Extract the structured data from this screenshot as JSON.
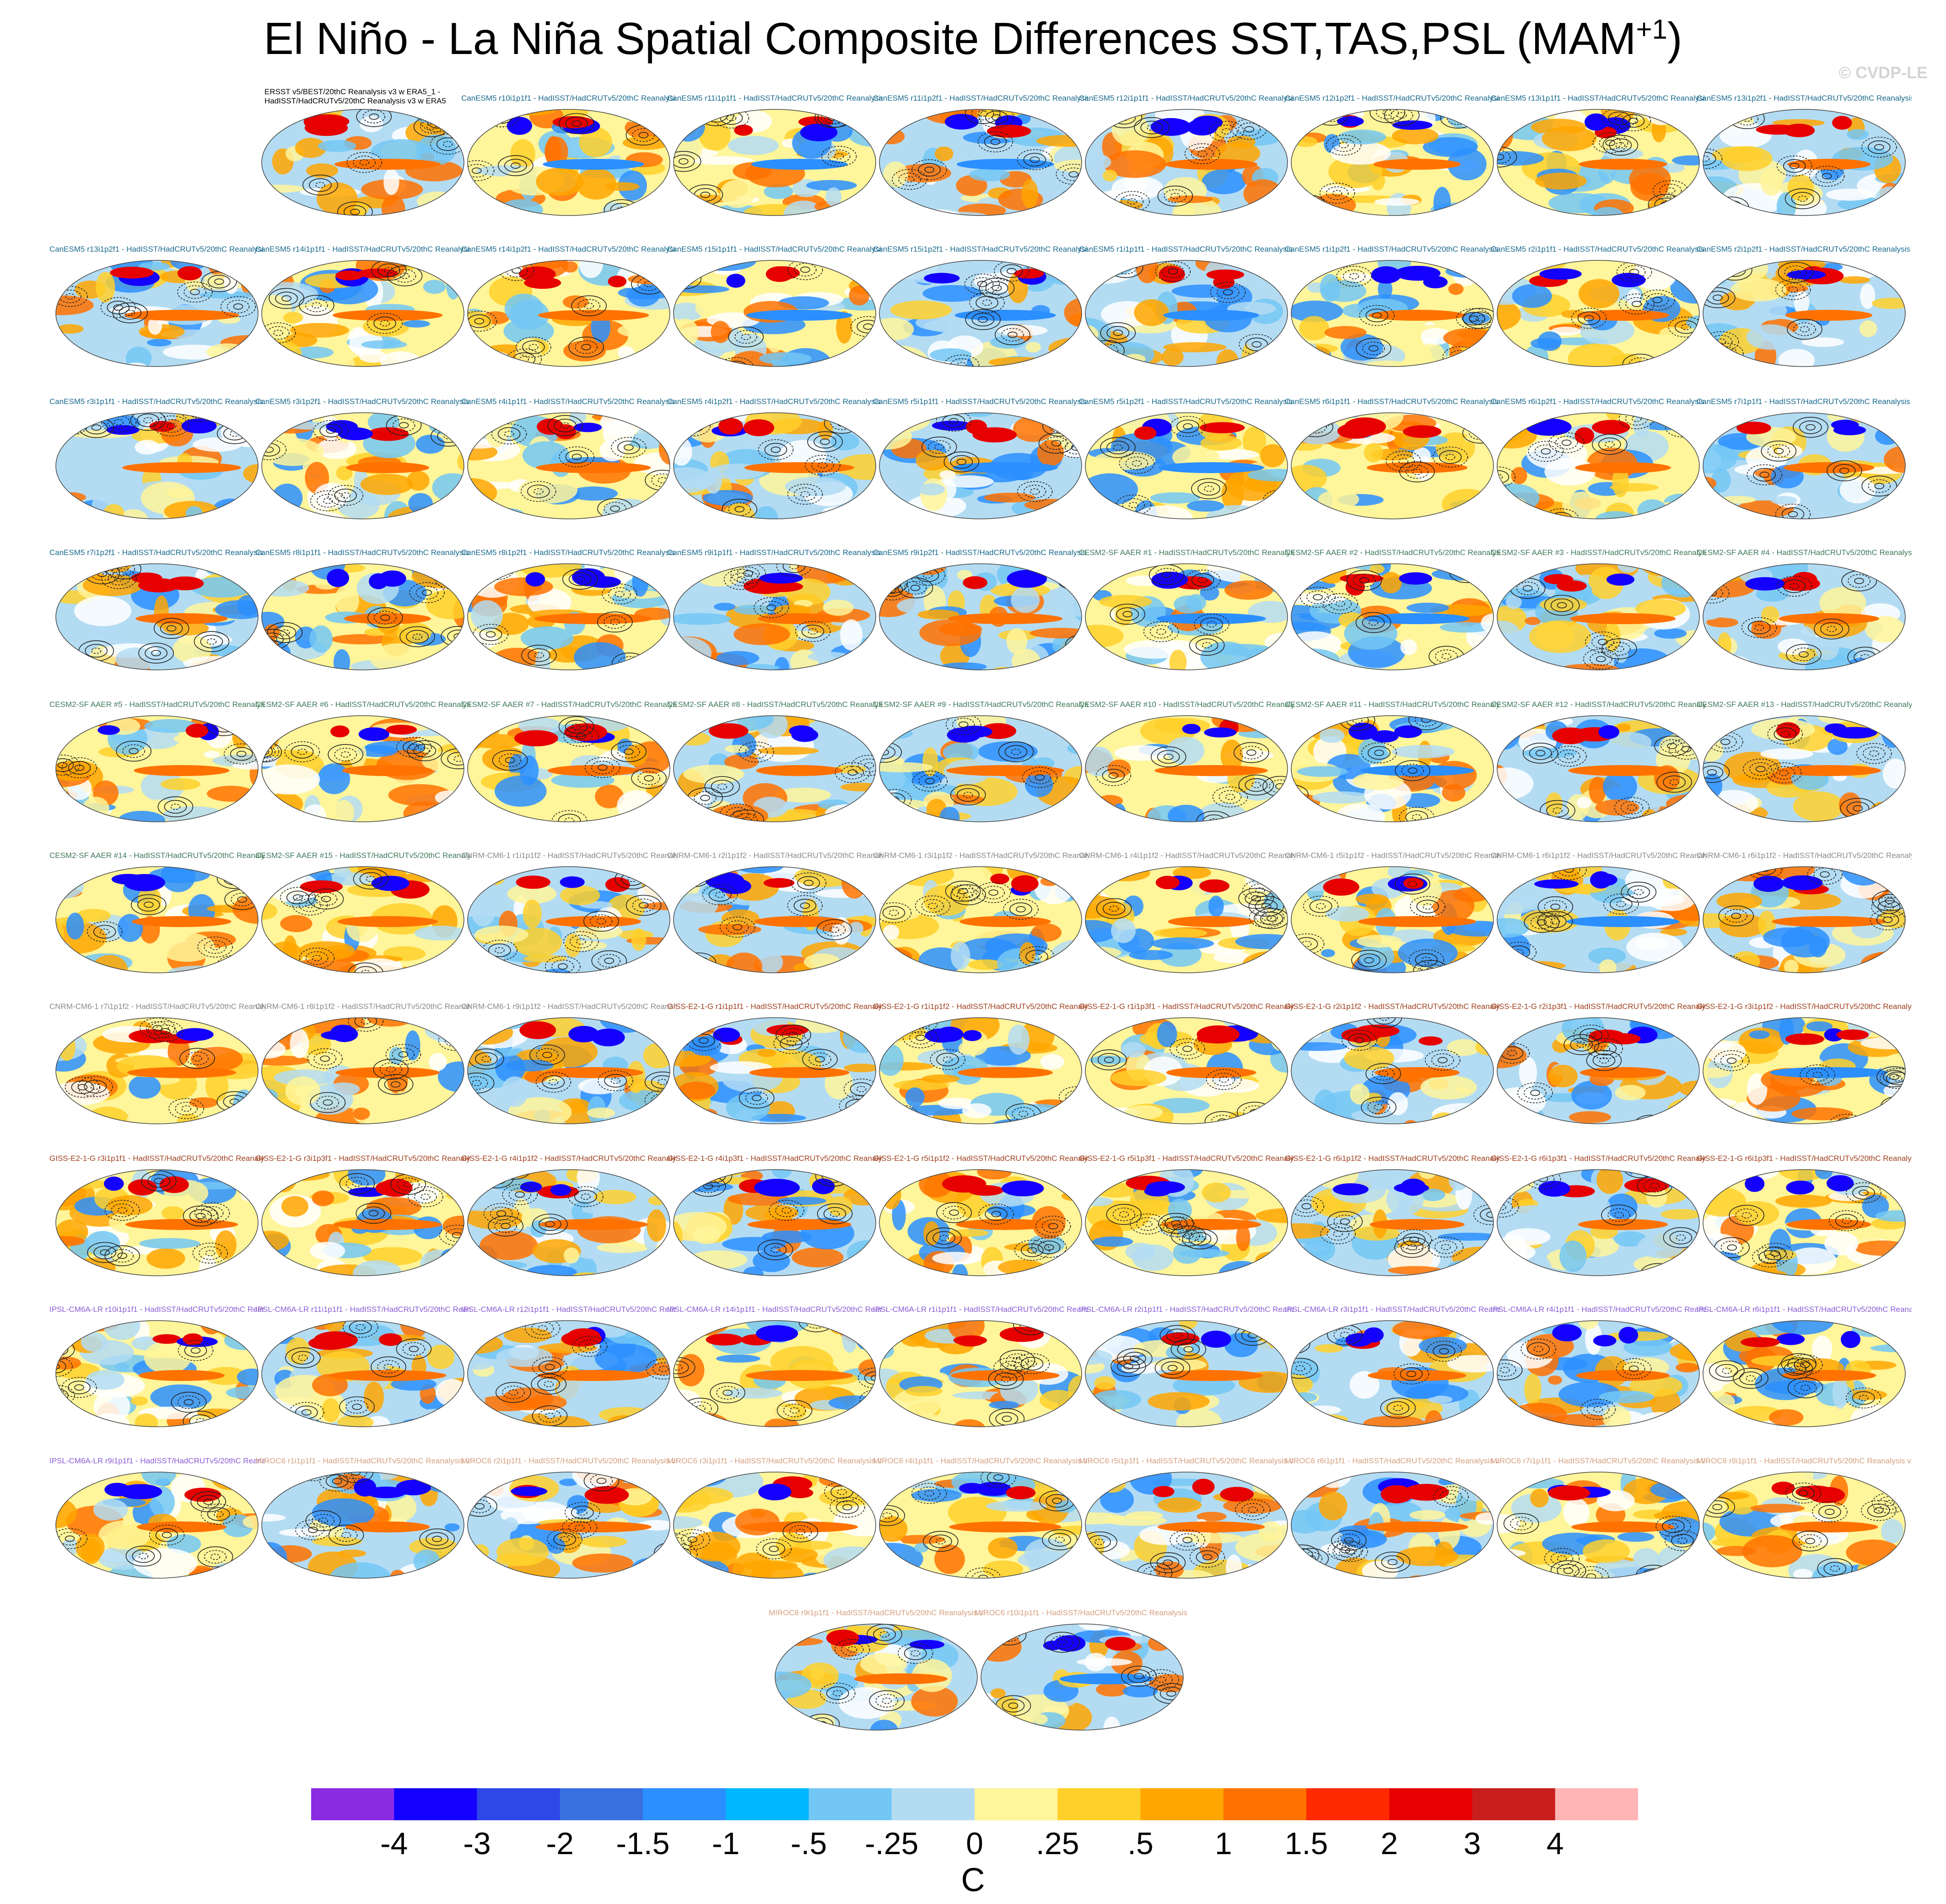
{
  "title": "El Niño - La Niña Spatial Composite Differences SST,TAS,PSL (MAM",
  "title_sup": "+1",
  "title_end": ")",
  "credit": "© CVDP-LE",
  "obs_header_line1": "ERSST v5/BEST/20thC Reanalysis v3 w ERA5_1 -",
  "obs_header_line2": "HadISST/HadCRUTv5/20thC Reanalysis v3 w ERA5",
  "chart_data": {
    "type": "heatmap",
    "description_units": "C",
    "colorbar": {
      "colors": [
        "#8a2be2",
        "#1400ff",
        "#2e48e8",
        "#3a6fe0",
        "#2b8fff",
        "#00b7ff",
        "#73c7f5",
        "#b3dcf3",
        "#fff59a",
        "#ffd02a",
        "#ffa600",
        "#ff7200",
        "#ff2a00",
        "#e60000",
        "#c81e1e",
        "#ffb5b5"
      ],
      "tick_labels": [
        "-4",
        "-3",
        "-2",
        "-1.5",
        "-1",
        "-.5",
        "-.25",
        "0",
        ".25",
        ".5",
        "1",
        "1.5",
        "2",
        "3",
        "4"
      ]
    },
    "panels": [
      {
        "label": "ERSST v5/BEST/20thC Reanalysis v3 w ERA5_1 - HadISST/HadCRUTv5/20thC Reanalysis v3 w ERA5",
        "color": "#000000"
      },
      {
        "label": "CanESM5 r10i1p1f1 - HadISST/HadCRUTv5/20thC Reanalysis v3 w ERA5",
        "color": "#1a6a8e"
      },
      {
        "label": "CanESM5 r11i1p1f1 - HadISST/HadCRUTv5/20thC Reanalysis v3 w ERA5",
        "color": "#1a6a8e"
      },
      {
        "label": "CanESM5 r11i1p2f1 - HadISST/HadCRUTv5/20thC Reanalysis v3 w ERA5",
        "color": "#1a6a8e"
      },
      {
        "label": "CanESM5 r12i1p1f1 - HadISST/HadCRUTv5/20thC Reanalysis v3 w ERA5",
        "color": "#1a6a8e"
      },
      {
        "label": "CanESM5 r12i1p2f1 - HadISST/HadCRUTv5/20thC Reanalysis v3 w ERA5",
        "color": "#1a6a8e"
      },
      {
        "label": "CanESM5 r13i1p1f1 - HadISST/HadCRUTv5/20thC Reanalysis v3 w ERA5",
        "color": "#1a6a8e"
      },
      {
        "label": "CanESM5 r13i1p2f1 - HadISST/HadCRUTv5/20thC Reanalysis v3 w ERA5",
        "color": "#1a6a8e"
      },
      {
        "label": "CanESM5 r13i1p2f1 - HadISST/HadCRUTv5/20thC Reanalysis v3 w ERA5",
        "color": "#1a6a8e"
      },
      {
        "label": "CanESM5 r14i1p1f1 - HadISST/HadCRUTv5/20thC Reanalysis v3 w ERA5",
        "color": "#1a6a8e"
      },
      {
        "label": "CanESM5 r14i1p2f1 - HadISST/HadCRUTv5/20thC Reanalysis v3 w ERA5",
        "color": "#1a6a8e"
      },
      {
        "label": "CanESM5 r15i1p1f1 - HadISST/HadCRUTv5/20thC Reanalysis v3 w ERA5",
        "color": "#1a6a8e"
      },
      {
        "label": "CanESM5 r15i1p2f1 - HadISST/HadCRUTv5/20thC Reanalysis v3 w ERA5",
        "color": "#1a6a8e"
      },
      {
        "label": "CanESM5 r1i1p1f1 - HadISST/HadCRUTv5/20thC Reanalysis v3 w ERA5",
        "color": "#1a6a8e"
      },
      {
        "label": "CanESM5 r1i1p2f1 - HadISST/HadCRUTv5/20thC Reanalysis v3 w ERA5",
        "color": "#1a6a8e"
      },
      {
        "label": "CanESM5 r2i1p1f1 - HadISST/HadCRUTv5/20thC Reanalysis v3 w ERA5",
        "color": "#1a6a8e"
      },
      {
        "label": "CanESM5 r2i1p2f1 - HadISST/HadCRUTv5/20thC Reanalysis v3 w ERA5",
        "color": "#1a6a8e"
      },
      {
        "label": "CanESM5 r3i1p1f1 - HadISST/HadCRUTv5/20thC Reanalysis v3 w ERA5",
        "color": "#1a6a8e"
      },
      {
        "label": "CanESM5 r3i1p2f1 - HadISST/HadCRUTv5/20thC Reanalysis v3 w ERA5",
        "color": "#1a6a8e"
      },
      {
        "label": "CanESM5 r4i1p1f1 - HadISST/HadCRUTv5/20thC Reanalysis v3 w ERA5",
        "color": "#1a6a8e"
      },
      {
        "label": "CanESM5 r4i1p2f1 - HadISST/HadCRUTv5/20thC Reanalysis v3 w ERA5",
        "color": "#1a6a8e"
      },
      {
        "label": "CanESM5 r5i1p1f1 - HadISST/HadCRUTv5/20thC Reanalysis v3 w ERA5",
        "color": "#1a6a8e"
      },
      {
        "label": "CanESM5 r5i1p2f1 - HadISST/HadCRUTv5/20thC Reanalysis v3 w ERA5",
        "color": "#1a6a8e"
      },
      {
        "label": "CanESM5 r6i1p1f1 - HadISST/HadCRUTv5/20thC Reanalysis v3 w ERA5",
        "color": "#1a6a8e"
      },
      {
        "label": "CanESM5 r6i1p2f1 - HadISST/HadCRUTv5/20thC Reanalysis v3 w ERA5",
        "color": "#1a6a8e"
      },
      {
        "label": "CanESM5 r7i1p1f1 - HadISST/HadCRUTv5/20thC Reanalysis v3 w ERA5",
        "color": "#1a6a8e"
      },
      {
        "label": "CanESM5 r7i1p2f1 - HadISST/HadCRUTv5/20thC Reanalysis v3 w ERA5",
        "color": "#1a6a8e"
      },
      {
        "label": "CanESM5 r8i1p1f1 - HadISST/HadCRUTv5/20thC Reanalysis v3 w ERA5",
        "color": "#1a6a8e"
      },
      {
        "label": "CanESM5 r8i1p2f1 - HadISST/HadCRUTv5/20thC Reanalysis v3 w ERA5",
        "color": "#1a6a8e"
      },
      {
        "label": "CanESM5 r9i1p1f1 - HadISST/HadCRUTv5/20thC Reanalysis v3 w ERA5",
        "color": "#1a6a8e"
      },
      {
        "label": "CanESM5 r9i1p2f1 - HadISST/HadCRUTv5/20thC Reanalysis v3 w ERA5",
        "color": "#1a6a8e"
      },
      {
        "label": "CESM2-SF AAER #1 - HadISST/HadCRUTv5/20thC Reanalysis v3 w ERA5",
        "color": "#3f7a5a"
      },
      {
        "label": "CESM2-SF AAER #2 - HadISST/HadCRUTv5/20thC Reanalysis v3 w ERA5",
        "color": "#3f7a5a"
      },
      {
        "label": "CESM2-SF AAER #3 - HadISST/HadCRUTv5/20thC Reanalysis v3 w ERA5",
        "color": "#3f7a5a"
      },
      {
        "label": "CESM2-SF AAER #4 - HadISST/HadCRUTv5/20thC Reanalysis v3 w ERA5",
        "color": "#3f7a5a"
      },
      {
        "label": "CESM2-SF AAER #5 - HadISST/HadCRUTv5/20thC Reanalysis v3 w ERA5",
        "color": "#3f7a5a"
      },
      {
        "label": "CESM2-SF AAER #6 - HadISST/HadCRUTv5/20thC Reanalysis v3 w ERA5",
        "color": "#3f7a5a"
      },
      {
        "label": "CESM2-SF AAER #7 - HadISST/HadCRUTv5/20thC Reanalysis v3 w ERA5",
        "color": "#3f7a5a"
      },
      {
        "label": "CESM2-SF AAER #8 - HadISST/HadCRUTv5/20thC Reanalysis v3 w ERA5",
        "color": "#3f7a5a"
      },
      {
        "label": "CESM2-SF AAER #9 - HadISST/HadCRUTv5/20thC Reanalysis v3 w ERA5",
        "color": "#3f7a5a"
      },
      {
        "label": "CESM2-SF AAER #10 - HadISST/HadCRUTv5/20thC Reanalysis v3 w ERA5",
        "color": "#3f7a5a"
      },
      {
        "label": "CESM2-SF AAER #11 - HadISST/HadCRUTv5/20thC Reanalysis v3 w ERA5",
        "color": "#3f7a5a"
      },
      {
        "label": "CESM2-SF AAER #12 - HadISST/HadCRUTv5/20thC Reanalysis v3 w ERA5",
        "color": "#3f7a5a"
      },
      {
        "label": "CESM2-SF AAER #13 - HadISST/HadCRUTv5/20thC Reanalysis v3 w ERA5",
        "color": "#3f7a5a"
      },
      {
        "label": "CESM2-SF AAER #14 - HadISST/HadCRUTv5/20thC Reanalysis v3 w ERA5",
        "color": "#3f7a5a"
      },
      {
        "label": "CESM2-SF AAER #15 - HadISST/HadCRUTv5/20thC Reanalysis v3 w ERA5",
        "color": "#3f7a5a"
      },
      {
        "label": "CNRM-CM6-1 r1i1p1f2 - HadISST/HadCRUTv5/20thC Reanalysis v3 w ERA5",
        "color": "#8a8a8a"
      },
      {
        "label": "CNRM-CM6-1 r2i1p1f2 - HadISST/HadCRUTv5/20thC Reanalysis v3 w ERA5",
        "color": "#8a8a8a"
      },
      {
        "label": "CNRM-CM6-1 r3i1p1f2 - HadISST/HadCRUTv5/20thC Reanalysis v3 w ERA5",
        "color": "#8a8a8a"
      },
      {
        "label": "CNRM-CM6-1 r4i1p1f2 - HadISST/HadCRUTv5/20thC Reanalysis v3 w ERA5",
        "color": "#8a8a8a"
      },
      {
        "label": "CNRM-CM6-1 r5i1p1f2 - HadISST/HadCRUTv5/20thC Reanalysis v3 w ERA5",
        "color": "#8a8a8a"
      },
      {
        "label": "CNRM-CM6-1 r6i1p1f2 - HadISST/HadCRUTv5/20thC Reanalysis v3 w ERA5",
        "color": "#8a8a8a"
      },
      {
        "label": "CNRM-CM6-1 r6i1p1f2 - HadISST/HadCRUTv5/20thC Reanalysis v3 w ERA5",
        "color": "#8a8a8a"
      },
      {
        "label": "CNRM-CM6-1 r7i1p1f2 - HadISST/HadCRUTv5/20thC Reanalysis v3 w ERA5",
        "color": "#8a8a8a"
      },
      {
        "label": "CNRM-CM6-1 r8i1p1f2 - HadISST/HadCRUTv5/20thC Reanalysis v3 w ERA5",
        "color": "#8a8a8a"
      },
      {
        "label": "CNRM-CM6-1 r9i1p1f2 - HadISST/HadCRUTv5/20thC Reanalysis v3 w ERA5",
        "color": "#8a8a8a"
      },
      {
        "label": "GISS-E2-1-G r1i1p1f1 - HadISST/HadCRUTv5/20thC Reanalysis v3 w ERA5",
        "color": "#a0401e"
      },
      {
        "label": "GISS-E2-1-G r1i1p1f2 - HadISST/HadCRUTv5/20thC Reanalysis v3 w ERA5",
        "color": "#a0401e"
      },
      {
        "label": "GISS-E2-1-G r1i1p3f1 - HadISST/HadCRUTv5/20thC Reanalysis v3 w ERA5",
        "color": "#a0401e"
      },
      {
        "label": "GISS-E2-1-G r2i1p1f2 - HadISST/HadCRUTv5/20thC Reanalysis v3 w ERA5",
        "color": "#a0401e"
      },
      {
        "label": "GISS-E2-1-G r2i1p3f1 - HadISST/HadCRUTv5/20thC Reanalysis v3 w ERA5",
        "color": "#a0401e"
      },
      {
        "label": "GISS-E2-1-G r3i1p1f2 - HadISST/HadCRUTv5/20thC Reanalysis v3 w ERA5",
        "color": "#a0401e"
      },
      {
        "label": "GISS-E2-1-G r3i1p1f1 - HadISST/HadCRUTv5/20thC Reanalysis v3 w ERA5",
        "color": "#a0401e"
      },
      {
        "label": "GISS-E2-1-G r3i1p3f1 - HadISST/HadCRUTv5/20thC Reanalysis v3 w ERA5",
        "color": "#a0401e"
      },
      {
        "label": "GISS-E2-1-G r4i1p1f2 - HadISST/HadCRUTv5/20thC Reanalysis v3 w ERA5",
        "color": "#a0401e"
      },
      {
        "label": "GISS-E2-1-G r4i1p3f1 - HadISST/HadCRUTv5/20thC Reanalysis v3 w ERA5",
        "color": "#a0401e"
      },
      {
        "label": "GISS-E2-1-G r5i1p1f2 - HadISST/HadCRUTv5/20thC Reanalysis v3 w ERA5",
        "color": "#a0401e"
      },
      {
        "label": "GISS-E2-1-G r5i1p3f1 - HadISST/HadCRUTv5/20thC Reanalysis v3 w ERA5",
        "color": "#a0401e"
      },
      {
        "label": "GISS-E2-1-G r6i1p1f2 - HadISST/HadCRUTv5/20thC Reanalysis v3 w ERA5",
        "color": "#a0401e"
      },
      {
        "label": "GISS-E2-1-G r6i1p3f1 - HadISST/HadCRUTv5/20thC Reanalysis v3 w ERA5",
        "color": "#a0401e"
      },
      {
        "label": "GISS-E2-1-G r6i1p3f1 - HadISST/HadCRUTv5/20thC Reanalysis v3 w ERA5",
        "color": "#a0401e"
      },
      {
        "label": "IPSL-CM6A-LR r10i1p1f1 - HadISST/HadCRUTv5/20thC Reanalysis v3 w ERA5",
        "color": "#8a5cd6"
      },
      {
        "label": "IPSL-CM6A-LR r11i1p1f1 - HadISST/HadCRUTv5/20thC Reanalysis v3 w ERA5",
        "color": "#8a5cd6"
      },
      {
        "label": "IPSL-CM6A-LR r12i1p1f1 - HadISST/HadCRUTv5/20thC Reanalysis v3 w ERA5",
        "color": "#8a5cd6"
      },
      {
        "label": "IPSL-CM6A-LR r14i1p1f1 - HadISST/HadCRUTv5/20thC Reanalysis v3 w ERA5",
        "color": "#8a5cd6"
      },
      {
        "label": "IPSL-CM6A-LR r1i1p1f1 - HadISST/HadCRUTv5/20thC Reanalysis v3 w ERA5",
        "color": "#8a5cd6"
      },
      {
        "label": "IPSL-CM6A-LR r2i1p1f1 - HadISST/HadCRUTv5/20thC Reanalysis v3 w ERA5",
        "color": "#8a5cd6"
      },
      {
        "label": "IPSL-CM6A-LR r3i1p1f1 - HadISST/HadCRUTv5/20thC Reanalysis v3 w ERA5",
        "color": "#8a5cd6"
      },
      {
        "label": "IPSL-CM6A-LR r4i1p1f1 - HadISST/HadCRUTv5/20thC Reanalysis v3 w ERA5",
        "color": "#8a5cd6"
      },
      {
        "label": "IPSL-CM6A-LR r6i1p1f1 - HadISST/HadCRUTv5/20thC Reanalysis v3 w ERA5",
        "color": "#8a5cd6"
      },
      {
        "label": "IPSL-CM6A-LR r9i1p1f1 - HadISST/HadCRUTv5/20thC Reanalysis v3 w ERA5",
        "color": "#8a5cd6"
      },
      {
        "label": "MIROC6 r1i1p1f1 - HadISST/HadCRUTv5/20thC Reanalysis v3 w ERA5",
        "color": "#d6a080"
      },
      {
        "label": "MIROC6 r2i1p1f1 - HadISST/HadCRUTv5/20thC Reanalysis v3 w ERA5",
        "color": "#d6a080"
      },
      {
        "label": "MIROC6 r3i1p1f1 - HadISST/HadCRUTv5/20thC Reanalysis v3 w ERA5",
        "color": "#d6a080"
      },
      {
        "label": "MIROC6 r4i1p1f1 - HadISST/HadCRUTv5/20thC Reanalysis v3 w ERA5",
        "color": "#d6a080"
      },
      {
        "label": "MIROC6 r5i1p1f1 - HadISST/HadCRUTv5/20thC Reanalysis v3 w ERA5",
        "color": "#d6a080"
      },
      {
        "label": "MIROC6 r6i1p1f1 - HadISST/HadCRUTv5/20thC Reanalysis v3 w ERA5",
        "color": "#d6a080"
      },
      {
        "label": "MIROC6 r7i1p1f1 - HadISST/HadCRUTv5/20thC Reanalysis v3 w ERA5",
        "color": "#d6a080"
      },
      {
        "label": "MIROC6 r8i1p1f1 - HadISST/HadCRUTv5/20thC Reanalysis v3 w ERA5",
        "color": "#d6a080"
      },
      {
        "label": "MIROC6 r9i1p1f1 - HadISST/HadCRUTv5/20thC Reanalysis v3 w ERA5",
        "color": "#d6a080"
      },
      {
        "label": "MIROC6 r10i1p1f1 - HadISST/HadCRUTv5/20thC Reanalysis v3 w ERA5",
        "color": "#d6a080"
      }
    ]
  }
}
